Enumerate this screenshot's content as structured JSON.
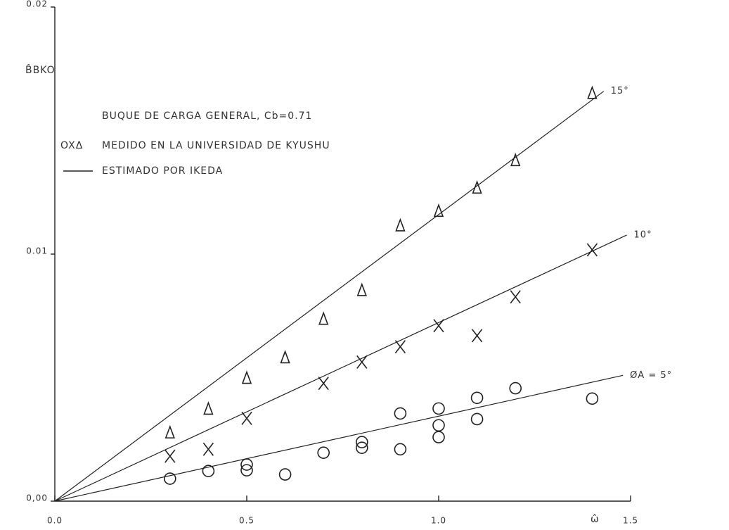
{
  "chart_data": {
    "type": "scatter",
    "y_label": "B̂BKO",
    "x_label": "ω̂",
    "note": "BUQUE DE CARGA GENERAL, Cb=0.71",
    "legend": [
      {
        "symbol": "OXΔ",
        "label": "MEDIDO EN LA UNIVERSIDAD DE KYUSHU"
      },
      {
        "symbol": "line",
        "label": "ESTIMADO POR IKEDA"
      }
    ],
    "xlim": [
      0,
      1.5
    ],
    "ylim": [
      0,
      0.02
    ],
    "xticks": [
      {
        "value": 0,
        "label": "0.0"
      },
      0.5,
      {
        "value": 1,
        "label": "1.0"
      },
      1.5
    ],
    "yticks": [
      {
        "value": 0,
        "label": "0,00"
      },
      0.01,
      0.02
    ],
    "series": [
      {
        "name": "15°",
        "marker": "line",
        "x": [
          0,
          1.43
        ],
        "values": [
          0,
          0.01659
        ]
      },
      {
        "name": "10°",
        "marker": "line",
        "x": [
          0,
          1.49
        ],
        "values": [
          0,
          0.01077
        ]
      },
      {
        "name": "ØA = 5°",
        "marker": "line",
        "x": [
          0,
          1.48
        ],
        "values": [
          0,
          0.00509
        ]
      },
      {
        "marker": "triangle",
        "x": [
          0.3,
          0.4,
          0.5,
          0.6,
          0.7,
          0.8,
          0.9,
          1.0,
          1.1,
          1.2,
          1.4
        ],
        "values": [
          0.00276,
          0.00372,
          0.00497,
          0.0058,
          0.00736,
          0.00852,
          0.01114,
          0.01173,
          0.01267,
          0.01378,
          0.0165
        ]
      },
      {
        "marker": "x",
        "x": [
          0.3,
          0.4,
          0.5,
          0.7,
          0.8,
          0.9,
          1.0,
          1.1,
          1.2,
          1.4
        ],
        "values": [
          0.00182,
          0.0021,
          0.00335,
          0.00477,
          0.00563,
          0.00625,
          0.0071,
          0.0067,
          0.00827,
          0.01017
        ]
      },
      {
        "marker": "circle",
        "x": [
          0.3,
          0.4,
          0.5,
          0.5,
          0.6,
          0.7,
          0.8,
          0.8,
          0.9,
          0.9,
          1.0,
          1.0,
          1.0,
          1.1,
          1.1,
          1.2,
          1.4
        ],
        "values": [
          0.00091,
          0.00122,
          0.00148,
          0.00125,
          0.00108,
          0.00196,
          0.00239,
          0.00216,
          0.00355,
          0.0021,
          0.00375,
          0.00307,
          0.00259,
          0.00418,
          0.00332,
          0.00457,
          0.00415
        ]
      }
    ]
  }
}
